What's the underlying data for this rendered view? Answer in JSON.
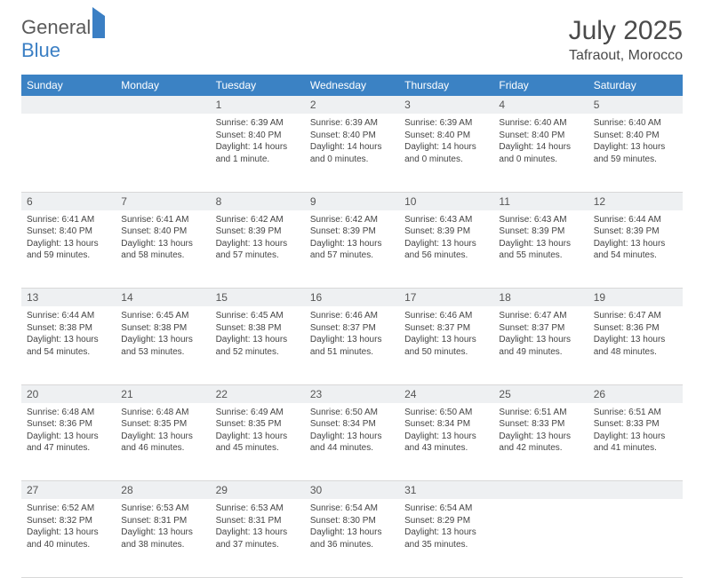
{
  "brand": {
    "part1": "General",
    "part2": "Blue"
  },
  "title": "July 2025",
  "location": "Tafraout, Morocco",
  "colors": {
    "header_bg": "#3b82c4",
    "header_fg": "#ffffff",
    "daynum_bg": "#eef0f2",
    "border": "#d8d8d8",
    "text": "#444444"
  },
  "day_headers": [
    "Sunday",
    "Monday",
    "Tuesday",
    "Wednesday",
    "Thursday",
    "Friday",
    "Saturday"
  ],
  "weeks": [
    {
      "nums": [
        "",
        "",
        "1",
        "2",
        "3",
        "4",
        "5"
      ],
      "cells": [
        null,
        null,
        {
          "sunrise": "Sunrise: 6:39 AM",
          "sunset": "Sunset: 8:40 PM",
          "day1": "Daylight: 14 hours",
          "day2": "and 1 minute."
        },
        {
          "sunrise": "Sunrise: 6:39 AM",
          "sunset": "Sunset: 8:40 PM",
          "day1": "Daylight: 14 hours",
          "day2": "and 0 minutes."
        },
        {
          "sunrise": "Sunrise: 6:39 AM",
          "sunset": "Sunset: 8:40 PM",
          "day1": "Daylight: 14 hours",
          "day2": "and 0 minutes."
        },
        {
          "sunrise": "Sunrise: 6:40 AM",
          "sunset": "Sunset: 8:40 PM",
          "day1": "Daylight: 14 hours",
          "day2": "and 0 minutes."
        },
        {
          "sunrise": "Sunrise: 6:40 AM",
          "sunset": "Sunset: 8:40 PM",
          "day1": "Daylight: 13 hours",
          "day2": "and 59 minutes."
        }
      ]
    },
    {
      "nums": [
        "6",
        "7",
        "8",
        "9",
        "10",
        "11",
        "12"
      ],
      "cells": [
        {
          "sunrise": "Sunrise: 6:41 AM",
          "sunset": "Sunset: 8:40 PM",
          "day1": "Daylight: 13 hours",
          "day2": "and 59 minutes."
        },
        {
          "sunrise": "Sunrise: 6:41 AM",
          "sunset": "Sunset: 8:40 PM",
          "day1": "Daylight: 13 hours",
          "day2": "and 58 minutes."
        },
        {
          "sunrise": "Sunrise: 6:42 AM",
          "sunset": "Sunset: 8:39 PM",
          "day1": "Daylight: 13 hours",
          "day2": "and 57 minutes."
        },
        {
          "sunrise": "Sunrise: 6:42 AM",
          "sunset": "Sunset: 8:39 PM",
          "day1": "Daylight: 13 hours",
          "day2": "and 57 minutes."
        },
        {
          "sunrise": "Sunrise: 6:43 AM",
          "sunset": "Sunset: 8:39 PM",
          "day1": "Daylight: 13 hours",
          "day2": "and 56 minutes."
        },
        {
          "sunrise": "Sunrise: 6:43 AM",
          "sunset": "Sunset: 8:39 PM",
          "day1": "Daylight: 13 hours",
          "day2": "and 55 minutes."
        },
        {
          "sunrise": "Sunrise: 6:44 AM",
          "sunset": "Sunset: 8:39 PM",
          "day1": "Daylight: 13 hours",
          "day2": "and 54 minutes."
        }
      ]
    },
    {
      "nums": [
        "13",
        "14",
        "15",
        "16",
        "17",
        "18",
        "19"
      ],
      "cells": [
        {
          "sunrise": "Sunrise: 6:44 AM",
          "sunset": "Sunset: 8:38 PM",
          "day1": "Daylight: 13 hours",
          "day2": "and 54 minutes."
        },
        {
          "sunrise": "Sunrise: 6:45 AM",
          "sunset": "Sunset: 8:38 PM",
          "day1": "Daylight: 13 hours",
          "day2": "and 53 minutes."
        },
        {
          "sunrise": "Sunrise: 6:45 AM",
          "sunset": "Sunset: 8:38 PM",
          "day1": "Daylight: 13 hours",
          "day2": "and 52 minutes."
        },
        {
          "sunrise": "Sunrise: 6:46 AM",
          "sunset": "Sunset: 8:37 PM",
          "day1": "Daylight: 13 hours",
          "day2": "and 51 minutes."
        },
        {
          "sunrise": "Sunrise: 6:46 AM",
          "sunset": "Sunset: 8:37 PM",
          "day1": "Daylight: 13 hours",
          "day2": "and 50 minutes."
        },
        {
          "sunrise": "Sunrise: 6:47 AM",
          "sunset": "Sunset: 8:37 PM",
          "day1": "Daylight: 13 hours",
          "day2": "and 49 minutes."
        },
        {
          "sunrise": "Sunrise: 6:47 AM",
          "sunset": "Sunset: 8:36 PM",
          "day1": "Daylight: 13 hours",
          "day2": "and 48 minutes."
        }
      ]
    },
    {
      "nums": [
        "20",
        "21",
        "22",
        "23",
        "24",
        "25",
        "26"
      ],
      "cells": [
        {
          "sunrise": "Sunrise: 6:48 AM",
          "sunset": "Sunset: 8:36 PM",
          "day1": "Daylight: 13 hours",
          "day2": "and 47 minutes."
        },
        {
          "sunrise": "Sunrise: 6:48 AM",
          "sunset": "Sunset: 8:35 PM",
          "day1": "Daylight: 13 hours",
          "day2": "and 46 minutes."
        },
        {
          "sunrise": "Sunrise: 6:49 AM",
          "sunset": "Sunset: 8:35 PM",
          "day1": "Daylight: 13 hours",
          "day2": "and 45 minutes."
        },
        {
          "sunrise": "Sunrise: 6:50 AM",
          "sunset": "Sunset: 8:34 PM",
          "day1": "Daylight: 13 hours",
          "day2": "and 44 minutes."
        },
        {
          "sunrise": "Sunrise: 6:50 AM",
          "sunset": "Sunset: 8:34 PM",
          "day1": "Daylight: 13 hours",
          "day2": "and 43 minutes."
        },
        {
          "sunrise": "Sunrise: 6:51 AM",
          "sunset": "Sunset: 8:33 PM",
          "day1": "Daylight: 13 hours",
          "day2": "and 42 minutes."
        },
        {
          "sunrise": "Sunrise: 6:51 AM",
          "sunset": "Sunset: 8:33 PM",
          "day1": "Daylight: 13 hours",
          "day2": "and 41 minutes."
        }
      ]
    },
    {
      "nums": [
        "27",
        "28",
        "29",
        "30",
        "31",
        "",
        ""
      ],
      "cells": [
        {
          "sunrise": "Sunrise: 6:52 AM",
          "sunset": "Sunset: 8:32 PM",
          "day1": "Daylight: 13 hours",
          "day2": "and 40 minutes."
        },
        {
          "sunrise": "Sunrise: 6:53 AM",
          "sunset": "Sunset: 8:31 PM",
          "day1": "Daylight: 13 hours",
          "day2": "and 38 minutes."
        },
        {
          "sunrise": "Sunrise: 6:53 AM",
          "sunset": "Sunset: 8:31 PM",
          "day1": "Daylight: 13 hours",
          "day2": "and 37 minutes."
        },
        {
          "sunrise": "Sunrise: 6:54 AM",
          "sunset": "Sunset: 8:30 PM",
          "day1": "Daylight: 13 hours",
          "day2": "and 36 minutes."
        },
        {
          "sunrise": "Sunrise: 6:54 AM",
          "sunset": "Sunset: 8:29 PM",
          "day1": "Daylight: 13 hours",
          "day2": "and 35 minutes."
        },
        null,
        null
      ]
    }
  ]
}
